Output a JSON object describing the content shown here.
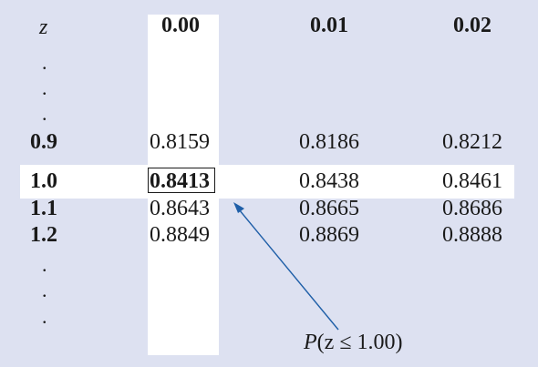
{
  "header": {
    "z_label": "z",
    "cols": [
      "0.00",
      "0.01",
      "0.02"
    ]
  },
  "dots": ".",
  "rows": [
    {
      "z": "0.9",
      "values": [
        "0.8159",
        "0.8186",
        "0.8212"
      ]
    },
    {
      "z": "1.0",
      "values": [
        "0.8413",
        "0.8438",
        "0.8461"
      ]
    },
    {
      "z": "1.1",
      "values": [
        "0.8643",
        "0.8665",
        "0.8686"
      ]
    },
    {
      "z": "1.2",
      "values": [
        "0.8849",
        "0.8869",
        "0.8888"
      ]
    }
  ],
  "annotation": {
    "p_label": "P",
    "expr": "(z ≤ 1.00)"
  },
  "colors": {
    "background": "#dde1f1",
    "highlight": "#ffffff",
    "arrow": "#1f5fa8"
  }
}
